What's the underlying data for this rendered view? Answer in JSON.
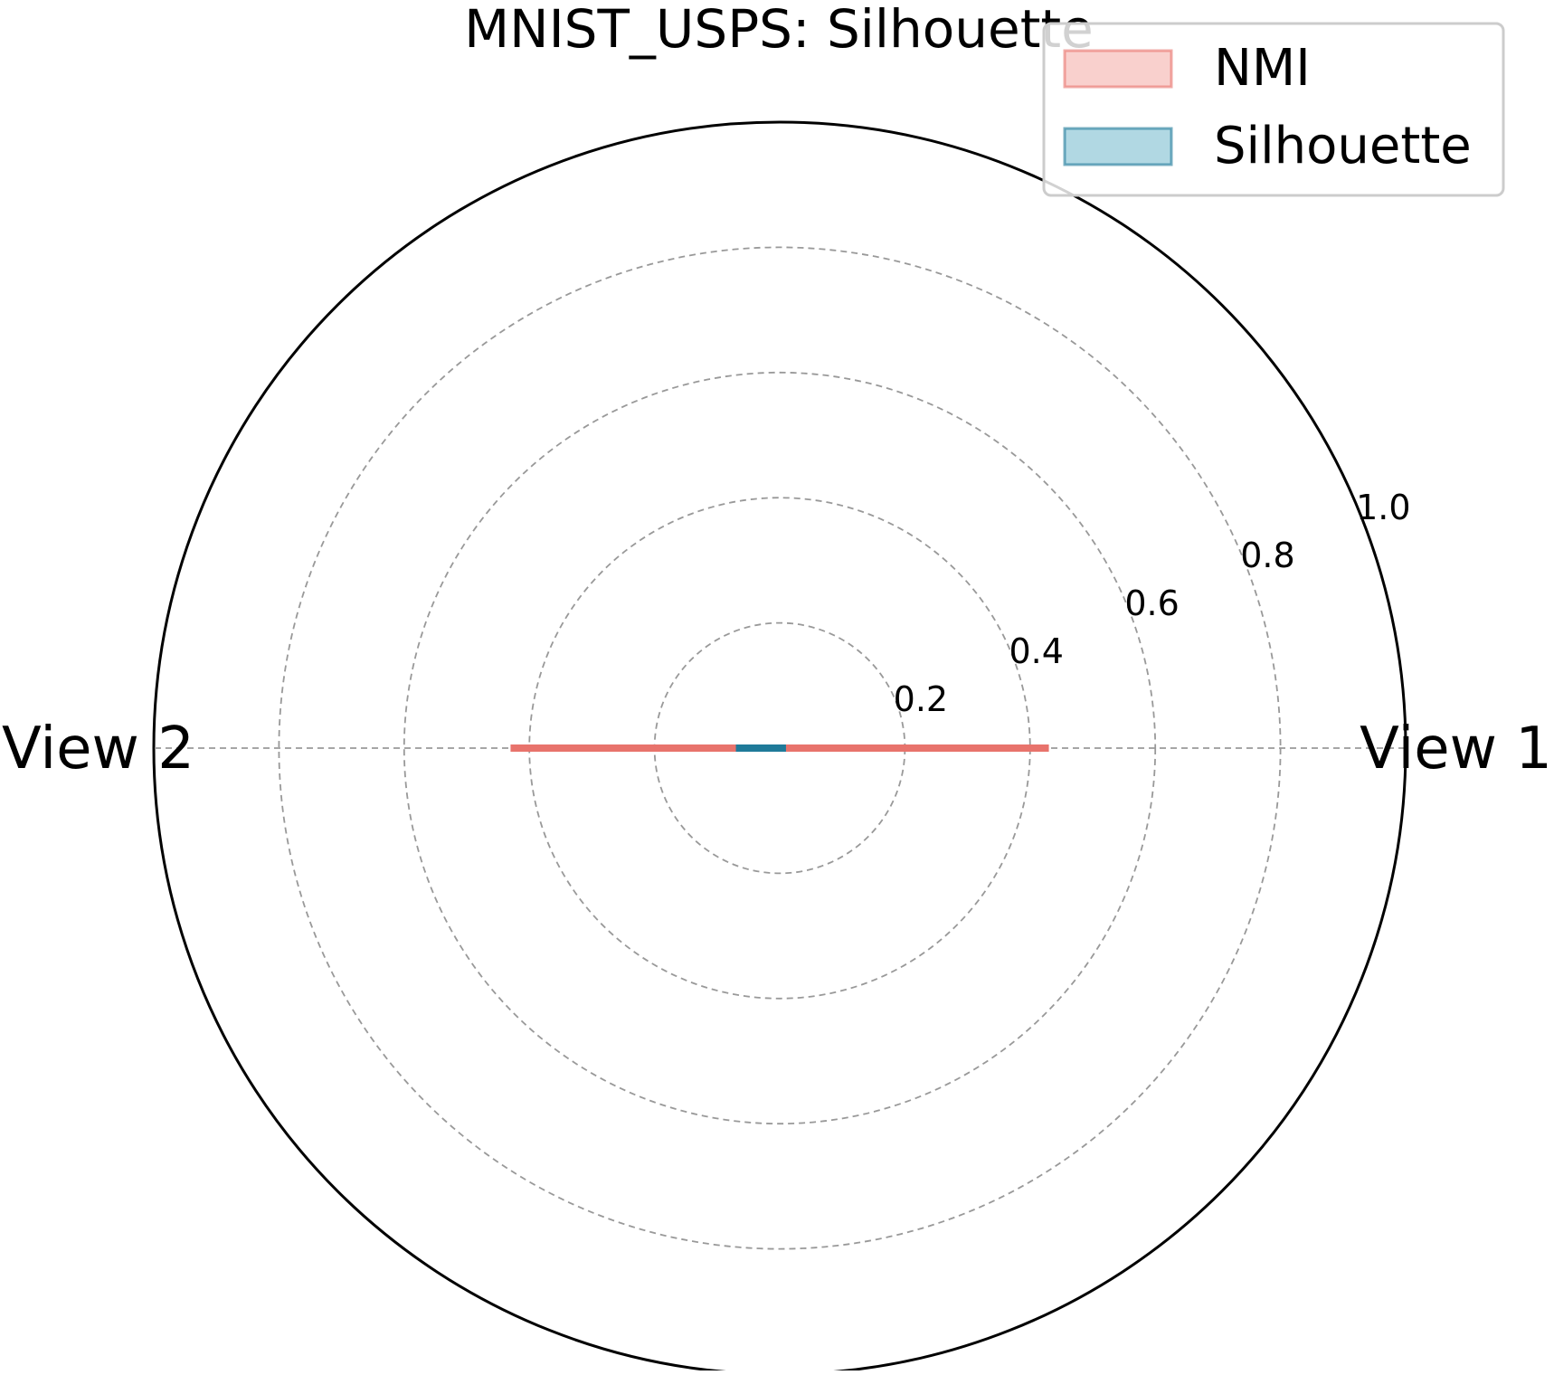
{
  "chart_data": {
    "type": "radar",
    "title": "MNIST_USPS: Silhouette",
    "axes": [
      "View 1",
      "View 2"
    ],
    "rlim": [
      0,
      1.0
    ],
    "r_ticks": [
      0.2,
      0.4,
      0.6,
      0.8,
      1.0
    ],
    "r_tick_labels": [
      "0.2",
      "0.4",
      "0.6",
      "0.8",
      "1.0"
    ],
    "grid": true,
    "legend_position": "top-right",
    "series": [
      {
        "name": "NMI",
        "values": [
          0.43,
          0.43
        ],
        "line_color": "#e8736c",
        "fill_color": "#f8cbc8"
      },
      {
        "name": "Silhouette",
        "values": [
          0.01,
          0.07
        ],
        "line_color": "#1f7a99",
        "fill_color": "#a8d4e0"
      }
    ]
  }
}
